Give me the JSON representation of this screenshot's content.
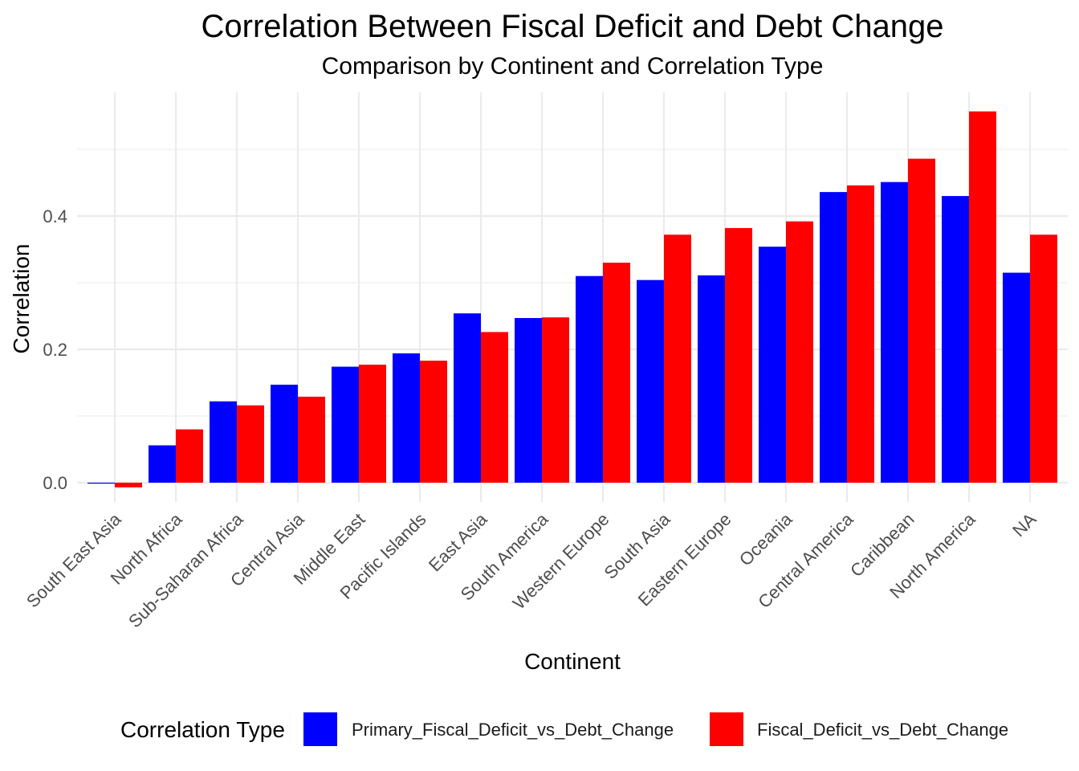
{
  "chart_data": {
    "type": "bar",
    "title": "Correlation Between Fiscal Deficit and Debt Change",
    "subtitle": "Comparison by Continent and Correlation Type",
    "xlabel": "Continent",
    "ylabel": "Correlation",
    "categories": [
      "South East Asia",
      "North Africa",
      "Sub-Saharan Africa",
      "Central Asia",
      "Middle East",
      "Pacific Islands",
      "East Asia",
      "South America",
      "Western Europe",
      "South Asia",
      "Eastern Europe",
      "Oceania",
      "Central America",
      "Caribbean",
      "North America",
      "NA"
    ],
    "series": [
      {
        "name": "Primary_Fiscal_Deficit_vs_Debt_Change",
        "color": "#0000ff",
        "values": [
          -0.001,
          0.056,
          0.122,
          0.147,
          0.174,
          0.194,
          0.254,
          0.247,
          0.31,
          0.304,
          0.311,
          0.354,
          0.436,
          0.451,
          0.43,
          0.315
        ]
      },
      {
        "name": "Fiscal_Deficit_vs_Debt_Change",
        "color": "#ff0000",
        "values": [
          -0.007,
          0.08,
          0.116,
          0.129,
          0.177,
          0.183,
          0.226,
          0.248,
          0.33,
          0.372,
          0.382,
          0.392,
          0.446,
          0.486,
          0.557,
          0.372
        ]
      }
    ],
    "ylim": [
      -0.04,
      0.585
    ],
    "y_ticks": [
      "0.0",
      "0.2",
      "0.4"
    ],
    "y_tick_values": [
      0.0,
      0.2,
      0.4
    ],
    "grid": true,
    "legend": {
      "title": "Correlation Type",
      "position": "bottom"
    }
  }
}
